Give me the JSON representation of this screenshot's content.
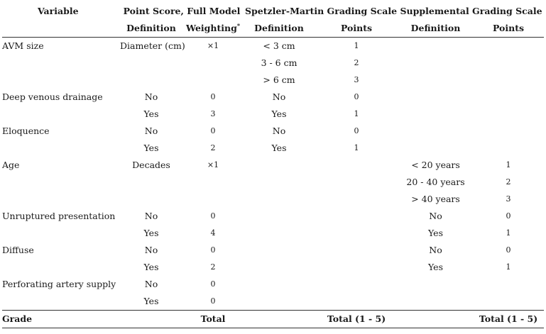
{
  "header": {
    "variable": "Variable",
    "group_full_model": "Point Score, Full Model",
    "group_sm": "Spetzler-Martin Grading Scale",
    "group_supp": "Supplemental Grading Scale",
    "sub_definition_1": "Definition",
    "sub_weighting": "Weighting",
    "weighting_mark": "*",
    "sub_definition_2": "Definition",
    "sub_points_1": "Points",
    "sub_definition_3": "Definition",
    "sub_points_2": "Points"
  },
  "rows": [
    {
      "variable": "AVM size",
      "fm_def": "Diameter (cm)",
      "fm_weight": "×1",
      "sm_def": "< 3 cm",
      "sm_pts": "1",
      "sup_def": "",
      "sup_pts": ""
    },
    {
      "variable": "",
      "fm_def": "",
      "fm_weight": "",
      "sm_def": "3 - 6 cm",
      "sm_pts": "2",
      "sup_def": "",
      "sup_pts": ""
    },
    {
      "variable": "",
      "fm_def": "",
      "fm_weight": "",
      "sm_def": "> 6 cm",
      "sm_pts": "3",
      "sup_def": "",
      "sup_pts": ""
    },
    {
      "variable": "Deep venous drainage",
      "fm_def": "No",
      "fm_weight": "0",
      "sm_def": "No",
      "sm_pts": "0",
      "sup_def": "",
      "sup_pts": ""
    },
    {
      "variable": "",
      "fm_def": "Yes",
      "fm_weight": "3",
      "sm_def": "Yes",
      "sm_pts": "1",
      "sup_def": "",
      "sup_pts": ""
    },
    {
      "variable": "Eloquence",
      "fm_def": "No",
      "fm_weight": "0",
      "sm_def": "No",
      "sm_pts": "0",
      "sup_def": "",
      "sup_pts": ""
    },
    {
      "variable": "",
      "fm_def": "Yes",
      "fm_weight": "2",
      "sm_def": "Yes",
      "sm_pts": "1",
      "sup_def": "",
      "sup_pts": ""
    },
    {
      "variable": "Age",
      "fm_def": "Decades",
      "fm_weight": "×1",
      "sm_def": "",
      "sm_pts": "",
      "sup_def": "< 20 years",
      "sup_pts": "1"
    },
    {
      "variable": "",
      "fm_def": "",
      "fm_weight": "",
      "sm_def": "",
      "sm_pts": "",
      "sup_def": "20 - 40 years",
      "sup_pts": "2"
    },
    {
      "variable": "",
      "fm_def": "",
      "fm_weight": "",
      "sm_def": "",
      "sm_pts": "",
      "sup_def": "> 40 years",
      "sup_pts": "3"
    },
    {
      "variable": "Unruptured presentation",
      "fm_def": "No",
      "fm_weight": "0",
      "sm_def": "",
      "sm_pts": "",
      "sup_def": "No",
      "sup_pts": "0"
    },
    {
      "variable": "",
      "fm_def": "Yes",
      "fm_weight": "4",
      "sm_def": "",
      "sm_pts": "",
      "sup_def": "Yes",
      "sup_pts": "1"
    },
    {
      "variable": "Diffuse",
      "fm_def": "No",
      "fm_weight": "0",
      "sm_def": "",
      "sm_pts": "",
      "sup_def": "No",
      "sup_pts": "0"
    },
    {
      "variable": "",
      "fm_def": "Yes",
      "fm_weight": "2",
      "sm_def": "",
      "sm_pts": "",
      "sup_def": "Yes",
      "sup_pts": "1"
    },
    {
      "variable": "Perforating artery supply",
      "fm_def": "No",
      "fm_weight": "0",
      "sm_def": "",
      "sm_pts": "",
      "sup_def": "",
      "sup_pts": ""
    },
    {
      "variable": "",
      "fm_def": "Yes",
      "fm_weight": "0",
      "sm_def": "",
      "sm_pts": "",
      "sup_def": "",
      "sup_pts": ""
    }
  ],
  "footer": {
    "label": "Grade",
    "fm_total": "Total",
    "sm_total": "Total (1 - 5)",
    "sup_total": "Total (1 - 5)"
  }
}
